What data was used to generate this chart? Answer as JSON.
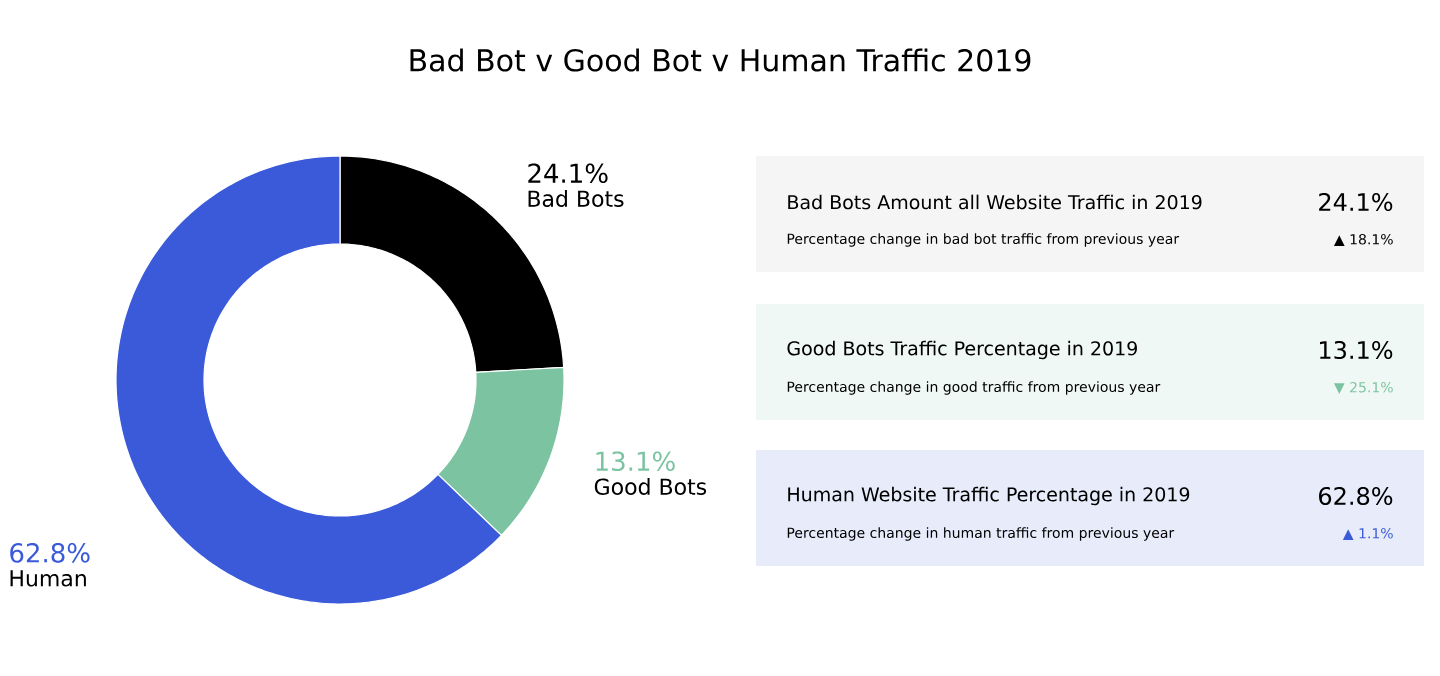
{
  "chart_data": {
    "type": "donut",
    "title": "Bad Bot v Good Bot v Human Traffic 2019",
    "categories": [
      "Bad Bots",
      "Good Bots",
      "Human"
    ],
    "values": [
      24.1,
      13.1,
      62.8
    ],
    "colors": [
      "#000000",
      "#7cc3a1",
      "#3a5ad9"
    ],
    "value_labels": [
      "24.1%",
      "13.1%",
      "62.8%"
    ],
    "annotations": [
      "Bad Bots Amount all Website Traffic in 2019",
      "24.1%",
      "Percentage change in bad bot traffic from previous year",
      "▲ 18.1%",
      "Good Bots Traffic Percentage in 2019",
      "13.1%",
      "Percentage change in good traffic from previous year",
      "▼ 25.1%",
      "Human Website Traffic Percentage in 2019",
      "62.8%",
      "Percentage change in human traffic from previous year",
      "▲ 1.1%"
    ]
  }
}
